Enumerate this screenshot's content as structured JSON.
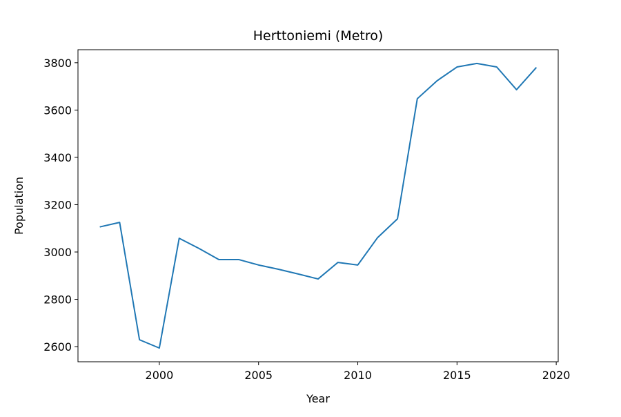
{
  "chart_data": {
    "type": "line",
    "title": "Herttoniemi (Metro)",
    "x_label": "Year",
    "y_label": "Population",
    "x": [
      1997,
      1998,
      1999,
      2000,
      2001,
      2002,
      2003,
      2004,
      2005,
      2006,
      2007,
      2008,
      2009,
      2010,
      2011,
      2012,
      2013,
      2014,
      2015,
      2016,
      2017,
      2018,
      2019
    ],
    "series": [
      {
        "name": "Population",
        "color": "#1f77b4",
        "values": [
          3106,
          3125,
          2629,
          2594,
          3058,
          3015,
          2968,
          2968,
          2945,
          2927,
          2907,
          2886,
          2956,
          2945,
          3061,
          3140,
          3648,
          3724,
          3782,
          3797,
          3782,
          3686,
          3780
        ]
      }
    ],
    "xlim": [
      1995.9,
      2020.1
    ],
    "xticks": [
      2000,
      2005,
      2010,
      2015,
      2020
    ],
    "ylim": [
      2536,
      3855
    ],
    "yticks": [
      2600,
      2800,
      3000,
      3200,
      3400,
      3600,
      3800
    ],
    "grid": false,
    "legend": false
  }
}
